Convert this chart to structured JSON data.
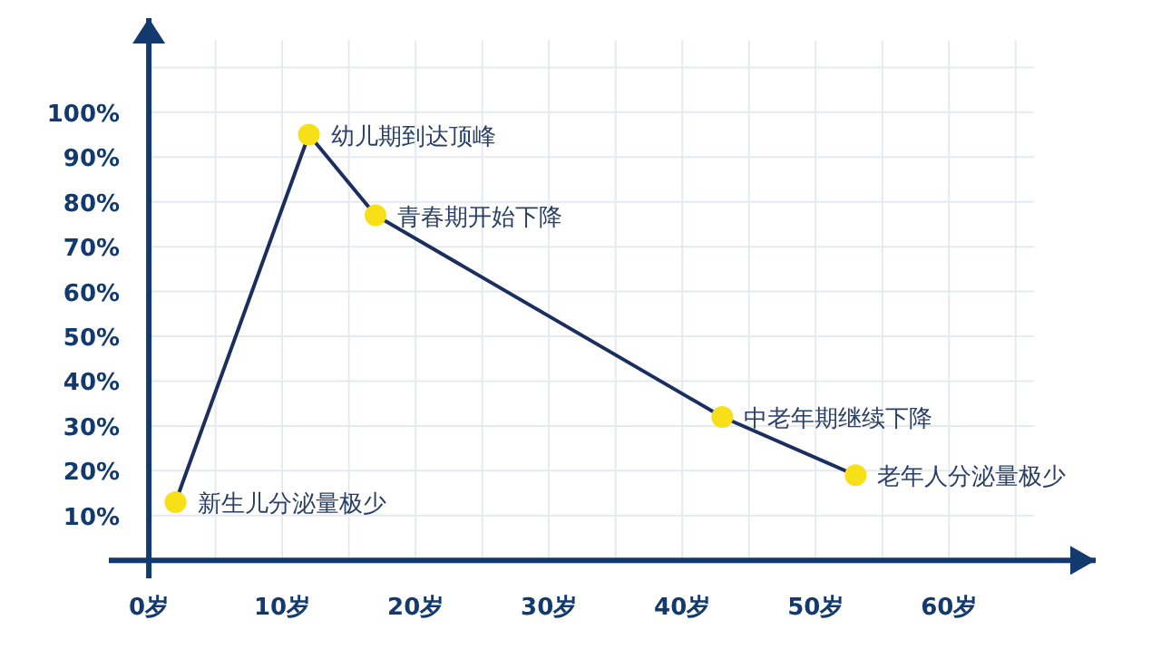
{
  "chart_data": {
    "type": "line",
    "x": [
      2,
      12,
      17,
      43,
      53
    ],
    "series": [
      {
        "color": "#1b2f5e",
        "colors": [
          "#f7e017",
          "#f7e017",
          "#f7e017",
          "#f7e017",
          "#f7e017"
        ],
        "values": [
          13,
          95,
          77,
          32,
          19
        ]
      }
    ],
    "xlim": [
      -3,
      71
    ],
    "ylim": [
      -4,
      121
    ],
    "xticks": [
      {
        "value": 0,
        "label": "0岁"
      },
      {
        "value": 5,
        "label": null
      },
      {
        "value": 10,
        "label": "10岁"
      },
      {
        "value": 15,
        "label": null
      },
      {
        "value": 20,
        "label": "20岁"
      },
      {
        "value": 25,
        "label": null
      },
      {
        "value": 30,
        "label": "30岁"
      },
      {
        "value": 35,
        "label": null
      },
      {
        "value": 40,
        "label": "40岁"
      },
      {
        "value": 45,
        "label": null
      },
      {
        "value": 50,
        "label": "50岁"
      },
      {
        "value": 55,
        "label": null
      },
      {
        "value": 60,
        "label": "60岁"
      },
      {
        "value": 65,
        "label": null
      }
    ],
    "yticks": [
      {
        "value": 10,
        "label": "10%"
      },
      {
        "value": 20,
        "label": "20%"
      },
      {
        "value": 30,
        "label": "30%"
      },
      {
        "value": 40,
        "label": "40%"
      },
      {
        "value": 50,
        "label": "50%"
      },
      {
        "value": 60,
        "label": "60%"
      },
      {
        "value": 70,
        "label": "70%"
      },
      {
        "value": 80,
        "label": "80%"
      },
      {
        "value": 90,
        "label": "90%"
      },
      {
        "value": 100,
        "label": "100%"
      },
      {
        "value": 110,
        "label": null
      }
    ],
    "grid": true,
    "marker": "circle",
    "line_style": "solid",
    "annotations": [
      {
        "text": "新生儿分泌量极少",
        "x": 2,
        "y": 13
      },
      {
        "text": "幼儿期到达顶峰",
        "x": 12,
        "y": 95
      },
      {
        "text": "青春期开始下降",
        "x": 17,
        "y": 77
      },
      {
        "text": "中老年期继续下降",
        "x": 43,
        "y": 32
      },
      {
        "text": "老年人分泌量极少",
        "x": 53,
        "y": 19
      }
    ]
  }
}
